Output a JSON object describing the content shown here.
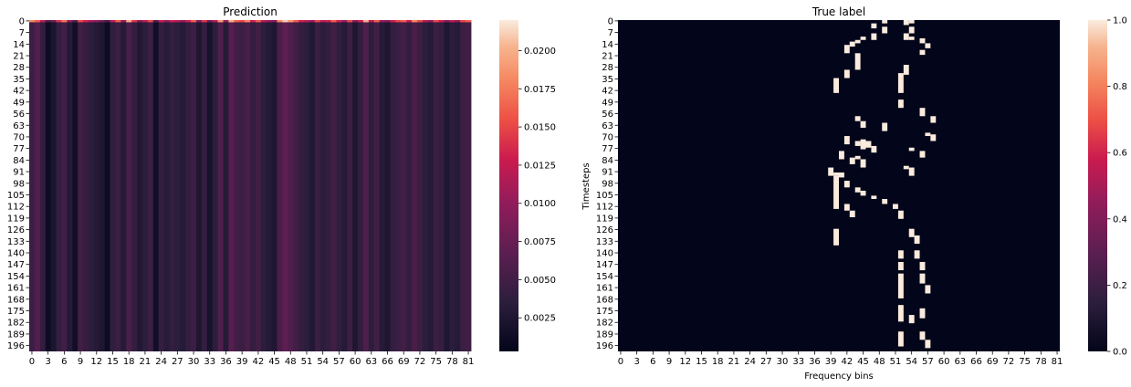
{
  "chart_data": [
    {
      "type": "heatmap",
      "title": "Prediction",
      "xlabel": "",
      "ylabel": "",
      "n_cols": 82,
      "n_rows": 200,
      "x_tick_labels": [
        "0",
        "3",
        "6",
        "9",
        "12",
        "15",
        "18",
        "21",
        "24",
        "27",
        "30",
        "33",
        "36",
        "39",
        "42",
        "45",
        "48",
        "51",
        "54",
        "57",
        "60",
        "63",
        "66",
        "69",
        "72",
        "75",
        "78",
        "81"
      ],
      "y_tick_labels": [
        "0",
        "7",
        "14",
        "21",
        "28",
        "35",
        "42",
        "49",
        "56",
        "63",
        "70",
        "77",
        "84",
        "91",
        "98",
        "105",
        "112",
        "119",
        "126",
        "133",
        "140",
        "147",
        "154",
        "161",
        "168",
        "175",
        "182",
        "189",
        "196"
      ],
      "colorbar_ticks": [
        {
          "value": 0.0025,
          "label": "0.0025"
        },
        {
          "value": 0.005,
          "label": "0.0050"
        },
        {
          "value": 0.0075,
          "label": "0.0075"
        },
        {
          "value": 0.01,
          "label": "0.0100"
        },
        {
          "value": 0.0125,
          "label": "0.0125"
        },
        {
          "value": 0.015,
          "label": "0.0150"
        },
        {
          "value": 0.0175,
          "label": "0.0175"
        },
        {
          "value": 0.02,
          "label": "0.0200"
        }
      ],
      "vmin": 0.0003,
      "vmax": 0.022,
      "column_values": [
        0.0045,
        0.0062,
        0.004,
        0.0012,
        0.0022,
        0.004,
        0.005,
        0.003,
        0.0015,
        0.005,
        0.0042,
        0.0035,
        0.003,
        0.0025,
        0.0012,
        0.0038,
        0.0045,
        0.003,
        0.0055,
        0.004,
        0.0028,
        0.0035,
        0.0045,
        0.0015,
        0.004,
        0.0032,
        0.004,
        0.0035,
        0.003,
        0.004,
        0.0045,
        0.0025,
        0.004,
        0.002,
        0.0035,
        0.006,
        0.003,
        0.0065,
        0.005,
        0.0045,
        0.0055,
        0.004,
        0.005,
        0.0035,
        0.003,
        0.0025,
        0.0055,
        0.007,
        0.006,
        0.005,
        0.004,
        0.0035,
        0.0028,
        0.0045,
        0.0035,
        0.004,
        0.005,
        0.0038,
        0.003,
        0.0045,
        0.0025,
        0.004,
        0.006,
        0.0035,
        0.005,
        0.003,
        0.0025,
        0.004,
        0.0045,
        0.005,
        0.004,
        0.0055,
        0.0045,
        0.0035,
        0.003,
        0.0045,
        0.004,
        0.0025,
        0.0035,
        0.003,
        0.0045,
        0.005
      ],
      "first_row_values": [
        0.018,
        0.016,
        0.012,
        0.006,
        0.008,
        0.014,
        0.017,
        0.01,
        0.006,
        0.015,
        0.013,
        0.011,
        0.01,
        0.008,
        0.005,
        0.012,
        0.016,
        0.01,
        0.02,
        0.014,
        0.009,
        0.012,
        0.015,
        0.006,
        0.013,
        0.01,
        0.013,
        0.012,
        0.01,
        0.013,
        0.016,
        0.009,
        0.014,
        0.008,
        0.012,
        0.019,
        0.01,
        0.02,
        0.016,
        0.015,
        0.018,
        0.013,
        0.016,
        0.012,
        0.01,
        0.009,
        0.018,
        0.021,
        0.019,
        0.016,
        0.013,
        0.012,
        0.01,
        0.015,
        0.012,
        0.013,
        0.016,
        0.013,
        0.01,
        0.015,
        0.009,
        0.013,
        0.02,
        0.012,
        0.016,
        0.01,
        0.009,
        0.013,
        0.015,
        0.016,
        0.013,
        0.018,
        0.015,
        0.012,
        0.01,
        0.015,
        0.013,
        0.009,
        0.012,
        0.01,
        0.015,
        0.016
      ]
    },
    {
      "type": "heatmap",
      "title": "True label",
      "xlabel": "Frequency bins",
      "ylabel": "Timesteps",
      "n_cols": 82,
      "n_rows": 200,
      "x_tick_labels": [
        "0",
        "3",
        "6",
        "9",
        "12",
        "15",
        "18",
        "21",
        "24",
        "27",
        "30",
        "33",
        "36",
        "39",
        "42",
        "45",
        "48",
        "51",
        "54",
        "57",
        "60",
        "63",
        "66",
        "69",
        "72",
        "75",
        "78",
        "81"
      ],
      "y_tick_labels": [
        "0",
        "7",
        "14",
        "21",
        "28",
        "35",
        "42",
        "49",
        "56",
        "63",
        "70",
        "77",
        "84",
        "91",
        "98",
        "105",
        "112",
        "119",
        "126",
        "133",
        "140",
        "147",
        "154",
        "161",
        "168",
        "175",
        "182",
        "189",
        "196"
      ],
      "colorbar_ticks": [
        {
          "value": 0.0,
          "label": "0.0"
        },
        {
          "value": 0.2,
          "label": "0.2"
        },
        {
          "value": 0.4,
          "label": "0.4"
        },
        {
          "value": 0.6,
          "label": "0.6"
        },
        {
          "value": 0.8,
          "label": "0.8"
        },
        {
          "value": 1.0,
          "label": "1.0"
        }
      ],
      "vmin": 0,
      "vmax": 1,
      "active_cells": [
        [
          49,
          0,
          2
        ],
        [
          53,
          0,
          3
        ],
        [
          54,
          0,
          2
        ],
        [
          47,
          2,
          3
        ],
        [
          49,
          4,
          4
        ],
        [
          54,
          4,
          4
        ],
        [
          47,
          8,
          4
        ],
        [
          53,
          8,
          4
        ],
        [
          54,
          10,
          2
        ],
        [
          45,
          10,
          2
        ],
        [
          44,
          12,
          2
        ],
        [
          43,
          13,
          3
        ],
        [
          56,
          11,
          3
        ],
        [
          57,
          14,
          3
        ],
        [
          56,
          18,
          3
        ],
        [
          42,
          15,
          5
        ],
        [
          44,
          20,
          10
        ],
        [
          53,
          27,
          6
        ],
        [
          42,
          30,
          5
        ],
        [
          52,
          32,
          3
        ],
        [
          40,
          35,
          9
        ],
        [
          52,
          35,
          9
        ],
        [
          52,
          48,
          5
        ],
        [
          56,
          53,
          5
        ],
        [
          58,
          58,
          4
        ],
        [
          44,
          58,
          3
        ],
        [
          45,
          61,
          4
        ],
        [
          49,
          62,
          5
        ],
        [
          57,
          68,
          2
        ],
        [
          58,
          69,
          4
        ],
        [
          42,
          70,
          5
        ],
        [
          45,
          72,
          6
        ],
        [
          44,
          73,
          3
        ],
        [
          46,
          73,
          4
        ],
        [
          47,
          76,
          4
        ],
        [
          54,
          77,
          2
        ],
        [
          41,
          79,
          5
        ],
        [
          44,
          82,
          2
        ],
        [
          56,
          79,
          4
        ],
        [
          43,
          83,
          4
        ],
        [
          45,
          84,
          5
        ],
        [
          53,
          88,
          2
        ],
        [
          54,
          89,
          5
        ],
        [
          39,
          89,
          5
        ],
        [
          41,
          92,
          3
        ],
        [
          40,
          92,
          2
        ],
        [
          40,
          94,
          20
        ],
        [
          42,
          97,
          4
        ],
        [
          44,
          101,
          3
        ],
        [
          45,
          103,
          3
        ],
        [
          47,
          106,
          2
        ],
        [
          49,
          108,
          3
        ],
        [
          51,
          111,
          3
        ],
        [
          42,
          111,
          4
        ],
        [
          43,
          115,
          4
        ],
        [
          52,
          115,
          5
        ],
        [
          54,
          126,
          5
        ],
        [
          40,
          126,
          10
        ],
        [
          55,
          130,
          5
        ],
        [
          52,
          139,
          5
        ],
        [
          55,
          139,
          5
        ],
        [
          52,
          146,
          5
        ],
        [
          56,
          146,
          5
        ],
        [
          52,
          153,
          15
        ],
        [
          56,
          153,
          6
        ],
        [
          57,
          160,
          5
        ],
        [
          52,
          172,
          10
        ],
        [
          56,
          174,
          6
        ],
        [
          54,
          178,
          5
        ],
        [
          52,
          188,
          9
        ],
        [
          56,
          188,
          5
        ],
        [
          57,
          193,
          5
        ]
      ]
    }
  ]
}
